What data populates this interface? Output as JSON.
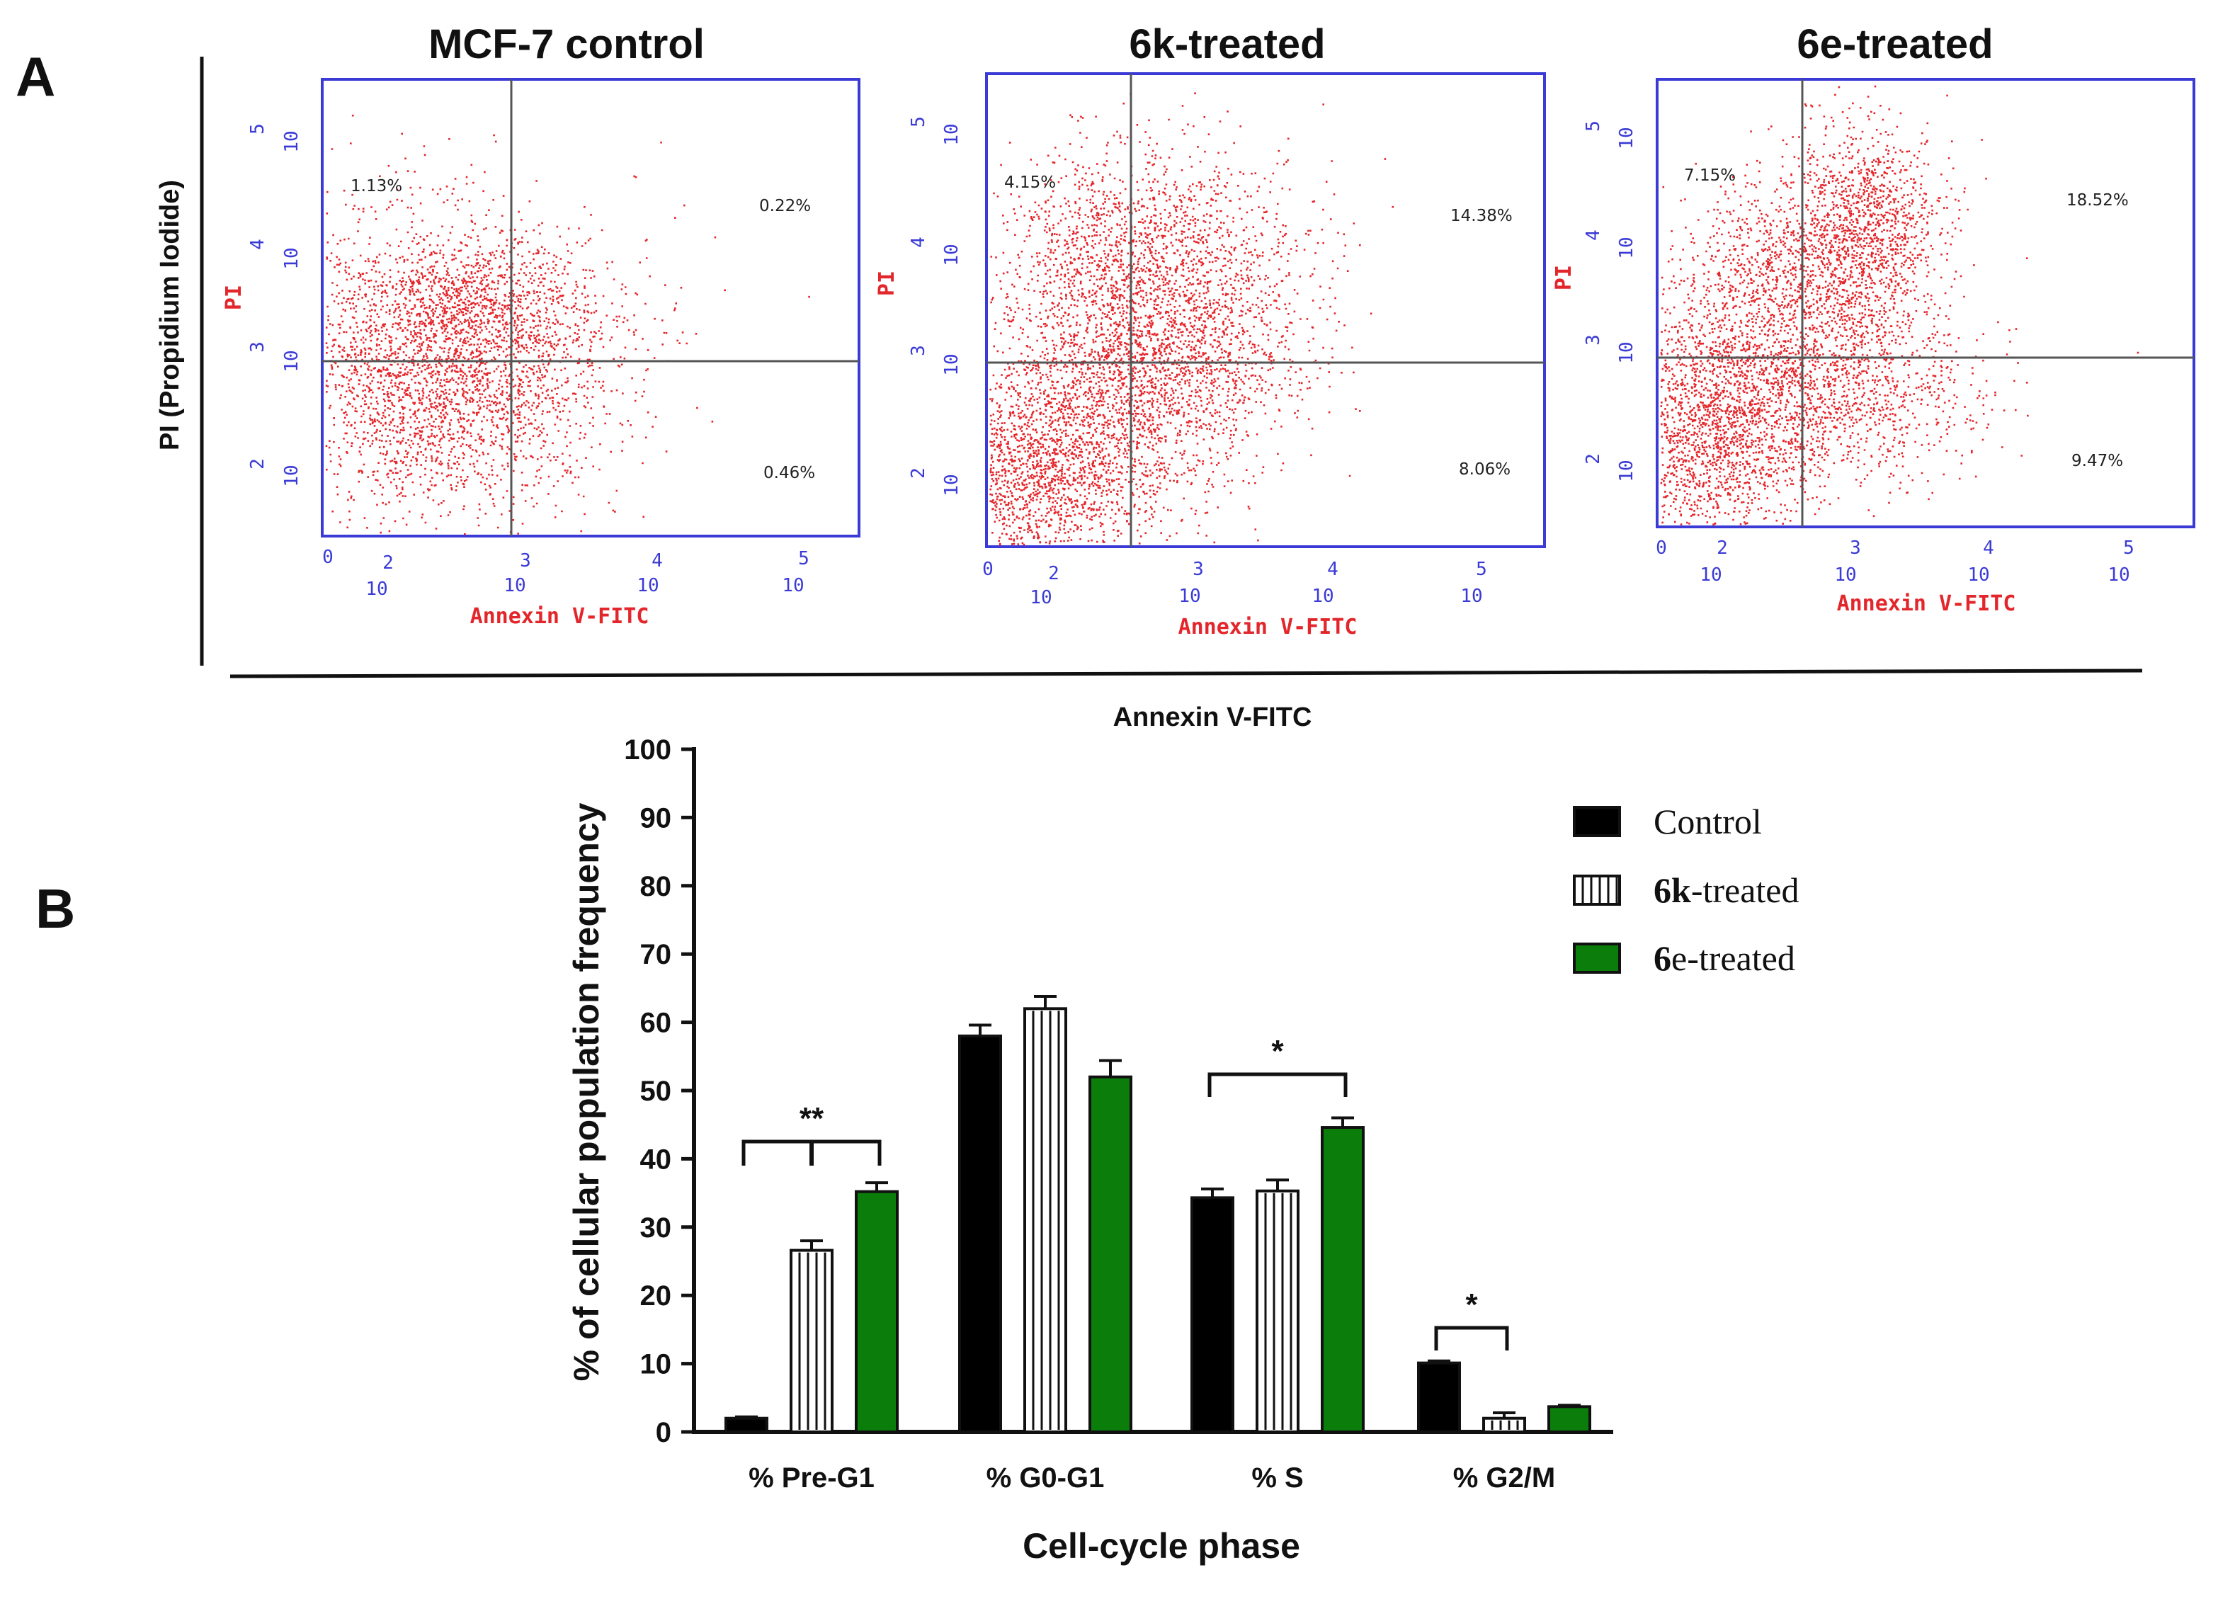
{
  "panel_labels": {
    "a": "A",
    "b": "B"
  },
  "colors": {
    "dot": "#e5252a",
    "axis_blue": "#3a3ad6",
    "label_red": "#e3262b",
    "control": "#000000",
    "treated_6k": "#ffffff",
    "treated_6e": "#0b7d0b"
  },
  "flow": {
    "shared_y_label": "PI (Propidium Iodide)",
    "shared_x_label": "Annexin V-FITC",
    "pi_label": "PI",
    "annexin_label": "Annexin V-FITC",
    "tick_base": "10",
    "exponents": [
      "0",
      "2",
      "3",
      "4",
      "5"
    ],
    "plots": [
      {
        "title": "MCF-7 control",
        "ul": "1.13%",
        "ur": "0.22%",
        "lr": "0.46%"
      },
      {
        "title": "6k-treated",
        "ul": "4.15%",
        "ur": "14.38%",
        "lr": "8.06%"
      },
      {
        "title": "6e-treated",
        "ul": "7.15%",
        "ur": "18.52%",
        "lr": "9.47%"
      }
    ]
  },
  "chart_data": {
    "type": "bar",
    "title": "",
    "xlabel": "Cell-cycle phase",
    "ylabel": "% of cellular population frequency",
    "ylim": [
      0,
      100
    ],
    "yticks": [
      "0",
      "10",
      "20",
      "30",
      "40",
      "50",
      "60",
      "70",
      "80",
      "90",
      "100"
    ],
    "categories": [
      "% Pre-G1",
      "% G0-G1",
      "% S",
      "% G2/M"
    ],
    "series": [
      {
        "name": "Control",
        "prefix": "",
        "suffix": "Control",
        "values": [
          2.0,
          58.0,
          34.3,
          10.1
        ],
        "errors": [
          0.2,
          1.6,
          1.3,
          0.3
        ],
        "color": "#000000"
      },
      {
        "name": "6k-treated",
        "prefix": "6k",
        "suffix": "-treated",
        "values": [
          26.6,
          62.0,
          35.3,
          2.0
        ],
        "errors": [
          1.4,
          1.8,
          1.6,
          0.8
        ],
        "color": "#ffffff"
      },
      {
        "name": "6e-treated",
        "prefix": "6",
        "suffix": "e-treated",
        "values": [
          35.2,
          52.0,
          44.6,
          3.7
        ],
        "errors": [
          1.3,
          2.4,
          1.4,
          0.2
        ],
        "color": "#0b7d0b"
      }
    ],
    "significance": [
      "**",
      "*",
      "*"
    ],
    "legend_position": "top-right"
  }
}
